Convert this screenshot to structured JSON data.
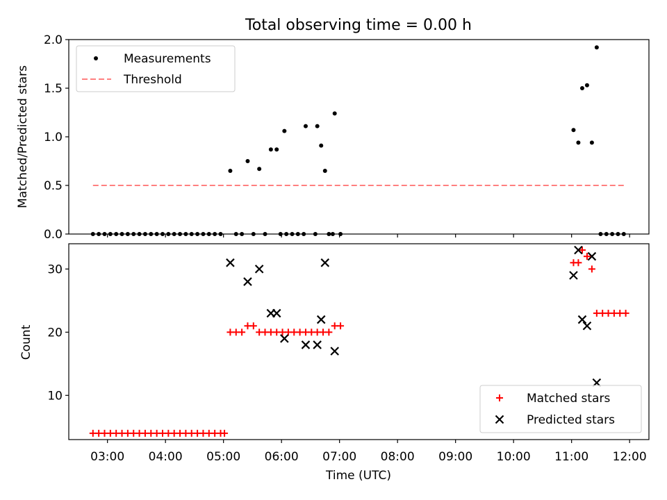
{
  "chart_data": [
    {
      "type": "scatter",
      "title": "Total observing time = 0.00 h",
      "xlabel": "",
      "ylabel": "Matched/Predicted stars",
      "xlim": [
        "02:20",
        "12:20"
      ],
      "ylim": [
        0,
        2.0
      ],
      "yticks": [
        "0.0",
        "0.5",
        "1.0",
        "1.5",
        "2.0"
      ],
      "grid": false,
      "legend_position": "upper left",
      "series": [
        {
          "name": "Measurements",
          "color": "#000000",
          "marker": "dot",
          "points": [
            [
              "02:45",
              0
            ],
            [
              "02:51",
              0
            ],
            [
              "02:57",
              0
            ],
            [
              "03:03",
              0
            ],
            [
              "03:09",
              0
            ],
            [
              "03:15",
              0
            ],
            [
              "03:21",
              0
            ],
            [
              "03:27",
              0
            ],
            [
              "03:33",
              0
            ],
            [
              "03:39",
              0
            ],
            [
              "03:45",
              0
            ],
            [
              "03:51",
              0
            ],
            [
              "03:57",
              0
            ],
            [
              "04:03",
              0
            ],
            [
              "04:09",
              0
            ],
            [
              "04:15",
              0
            ],
            [
              "04:21",
              0
            ],
            [
              "04:27",
              0
            ],
            [
              "04:33",
              0
            ],
            [
              "04:39",
              0
            ],
            [
              "04:45",
              0
            ],
            [
              "04:51",
              0
            ],
            [
              "04:57",
              0
            ],
            [
              "05:07",
              0.65
            ],
            [
              "05:13",
              0
            ],
            [
              "05:19",
              0
            ],
            [
              "05:25",
              0.75
            ],
            [
              "05:31",
              0
            ],
            [
              "05:37",
              0.67
            ],
            [
              "05:43",
              0
            ],
            [
              "05:49",
              0.87
            ],
            [
              "05:55",
              0.87
            ],
            [
              "05:59",
              0
            ],
            [
              "06:05",
              0
            ],
            [
              "06:03",
              1.06
            ],
            [
              "06:11",
              0
            ],
            [
              "06:17",
              0
            ],
            [
              "06:23",
              0
            ],
            [
              "06:25",
              1.11
            ],
            [
              "06:35",
              0
            ],
            [
              "06:37",
              1.11
            ],
            [
              "06:41",
              0.91
            ],
            [
              "06:45",
              0.65
            ],
            [
              "06:49",
              0
            ],
            [
              "06:53",
              0
            ],
            [
              "06:55",
              1.24
            ],
            [
              "07:01",
              0
            ],
            [
              "11:02",
              1.07
            ],
            [
              "11:07",
              0.94
            ],
            [
              "11:11",
              1.5
            ],
            [
              "11:16",
              1.53
            ],
            [
              "11:21",
              0.94
            ],
            [
              "11:26",
              1.92
            ],
            [
              "11:30",
              0
            ],
            [
              "11:36",
              0
            ],
            [
              "11:42",
              0
            ],
            [
              "11:48",
              0
            ],
            [
              "11:54",
              0
            ]
          ]
        },
        {
          "name": "Threshold",
          "color": "#ff7f7f",
          "style": "dashed",
          "x": [
            "02:45",
            "11:55"
          ],
          "y": [
            0.5,
            0.5
          ]
        }
      ]
    },
    {
      "type": "scatter",
      "title": "",
      "xlabel": "Time (UTC)",
      "ylabel": "Count",
      "xlim": [
        "02:20",
        "12:20"
      ],
      "ylim": [
        3,
        34
      ],
      "yticks": [
        "10",
        "20",
        "30"
      ],
      "xticks": [
        "03:00",
        "04:00",
        "05:00",
        "06:00",
        "07:00",
        "08:00",
        "09:00",
        "10:00",
        "11:00",
        "12:00"
      ],
      "grid": false,
      "legend_position": "lower right",
      "series": [
        {
          "name": "Matched stars",
          "color": "#ff0000",
          "marker": "plus",
          "points": [
            [
              "02:45",
              4
            ],
            [
              "02:51",
              4
            ],
            [
              "02:57",
              4
            ],
            [
              "03:03",
              4
            ],
            [
              "03:09",
              4
            ],
            [
              "03:15",
              4
            ],
            [
              "03:21",
              4
            ],
            [
              "03:27",
              4
            ],
            [
              "03:33",
              4
            ],
            [
              "03:39",
              4
            ],
            [
              "03:45",
              4
            ],
            [
              "03:51",
              4
            ],
            [
              "03:57",
              4
            ],
            [
              "04:03",
              4
            ],
            [
              "04:09",
              4
            ],
            [
              "04:15",
              4
            ],
            [
              "04:21",
              4
            ],
            [
              "04:27",
              4
            ],
            [
              "04:33",
              4
            ],
            [
              "04:39",
              4
            ],
            [
              "04:45",
              4
            ],
            [
              "04:51",
              4
            ],
            [
              "04:57",
              4
            ],
            [
              "05:01",
              4
            ],
            [
              "05:07",
              20
            ],
            [
              "05:13",
              20
            ],
            [
              "05:19",
              20
            ],
            [
              "05:25",
              21
            ],
            [
              "05:31",
              21
            ],
            [
              "05:37",
              20
            ],
            [
              "05:43",
              20
            ],
            [
              "05:49",
              20
            ],
            [
              "05:55",
              20
            ],
            [
              "06:01",
              20
            ],
            [
              "06:07",
              20
            ],
            [
              "06:13",
              20
            ],
            [
              "06:19",
              20
            ],
            [
              "06:25",
              20
            ],
            [
              "06:31",
              20
            ],
            [
              "06:37",
              20
            ],
            [
              "06:43",
              20
            ],
            [
              "06:49",
              20
            ],
            [
              "06:55",
              21
            ],
            [
              "07:01",
              21
            ],
            [
              "11:02",
              31
            ],
            [
              "11:07",
              31
            ],
            [
              "11:11",
              33
            ],
            [
              "11:16",
              32
            ],
            [
              "11:21",
              30
            ],
            [
              "11:26",
              23
            ],
            [
              "11:32",
              23
            ],
            [
              "11:38",
              23
            ],
            [
              "11:44",
              23
            ],
            [
              "11:50",
              23
            ],
            [
              "11:56",
              23
            ]
          ]
        },
        {
          "name": "Predicted stars",
          "color": "#000000",
          "marker": "x",
          "points": [
            [
              "05:07",
              31
            ],
            [
              "05:25",
              28
            ],
            [
              "05:37",
              30
            ],
            [
              "05:49",
              23
            ],
            [
              "05:55",
              23
            ],
            [
              "06:03",
              19
            ],
            [
              "06:25",
              18
            ],
            [
              "06:37",
              18
            ],
            [
              "06:41",
              22
            ],
            [
              "06:45",
              31
            ],
            [
              "06:55",
              17
            ],
            [
              "11:02",
              29
            ],
            [
              "11:07",
              33
            ],
            [
              "11:11",
              22
            ],
            [
              "11:16",
              21
            ],
            [
              "11:21",
              32
            ],
            [
              "11:26",
              12
            ]
          ]
        }
      ]
    }
  ]
}
